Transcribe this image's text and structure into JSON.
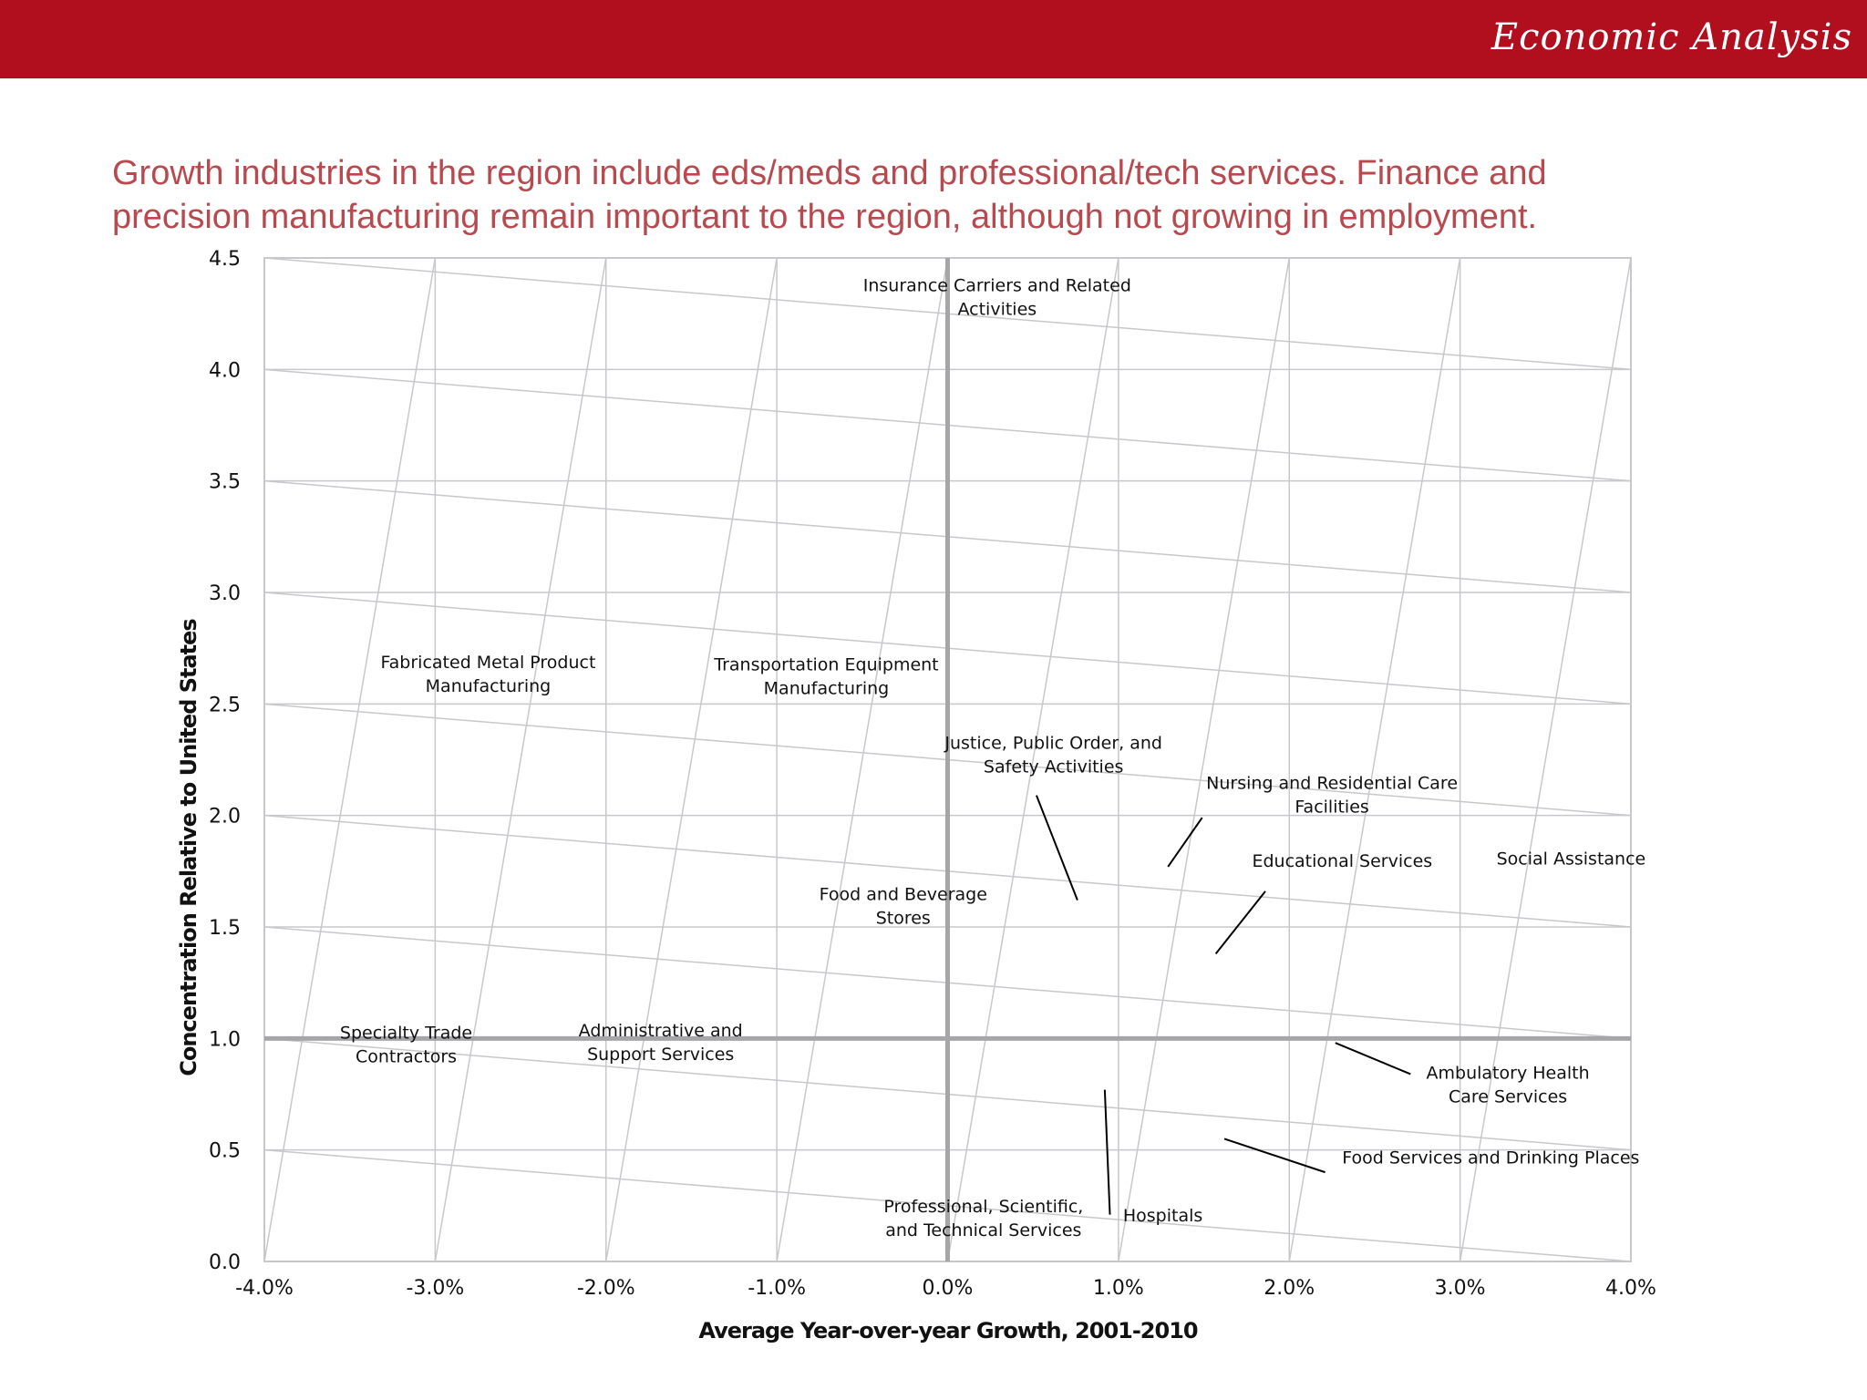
{
  "header": {
    "brand": "Economic Analysis",
    "headline_line1": "Growth industries in the region include eds/meds and professional/tech services. Finance and",
    "headline_line2": "precision manufacturing remain important to the region, although not growing in employment."
  },
  "colors": {
    "header_bg": "#b10e1e",
    "headline": "#b84a4f",
    "grid": "#c8c8cc",
    "axis_emphasis": "#a6a6a8"
  },
  "chart_data": {
    "type": "scatter",
    "xlabel": "Average Year-over-year Growth, 2001-2010",
    "ylabel": "Concentration Relative to United States",
    "xlim": [
      -0.04,
      0.04
    ],
    "ylim": [
      0,
      4.5
    ],
    "x_ticks": [
      "-4.0%",
      "-3.0%",
      "-2.0%",
      "-1.0%",
      "0.0%",
      "1.0%",
      "2.0%",
      "3.0%",
      "4.0%"
    ],
    "y_ticks": [
      "0.0",
      "0.5",
      "1.0",
      "1.5",
      "2.0",
      "2.5",
      "3.0",
      "3.5",
      "4.0",
      "4.5"
    ],
    "grid": true,
    "reference_lines": {
      "x": 0.0,
      "y": 1.0
    },
    "labels": [
      {
        "lines": [
          "Insurance Carriers and Related",
          "Activities"
        ],
        "x": 0.0029,
        "y": 4.35
      },
      {
        "lines": [
          "Fabricated Metal Product",
          "Manufacturing"
        ],
        "x": -0.0269,
        "y": 2.66
      },
      {
        "lines": [
          "Transportation Equipment",
          "Manufacturing"
        ],
        "x": -0.0071,
        "y": 2.65
      },
      {
        "lines": [
          "Justice, Public Order, and",
          "Safety Activities"
        ],
        "x": 0.0062,
        "y": 2.3
      },
      {
        "lines": [
          "Nursing and Residential Care",
          "Facilities"
        ],
        "x": 0.0225,
        "y": 2.12
      },
      {
        "lines": [
          "Educational Services"
        ],
        "x": 0.0231,
        "y": 1.77
      },
      {
        "lines": [
          "Social Assistance"
        ],
        "x": 0.0365,
        "y": 1.78
      },
      {
        "lines": [
          "Food and Beverage",
          "Stores"
        ],
        "x": -0.0026,
        "y": 1.62
      },
      {
        "lines": [
          "Specialty Trade",
          "Contractors"
        ],
        "x": -0.0317,
        "y": 1.0
      },
      {
        "lines": [
          "Administrative and",
          "Support Services"
        ],
        "x": -0.0168,
        "y": 1.01
      },
      {
        "lines": [
          "Ambulatory Health",
          "Care Services"
        ],
        "x": 0.0328,
        "y": 0.82
      },
      {
        "lines": [
          "Food Services and Drinking Places"
        ],
        "x": 0.0318,
        "y": 0.44
      },
      {
        "lines": [
          "Professional, Scientific,",
          "and Technical Services"
        ],
        "x": 0.0021,
        "y": 0.22
      },
      {
        "lines": [
          "Hospitals"
        ],
        "x": 0.0126,
        "y": 0.18
      }
    ],
    "leaders": [
      {
        "from": [
          0.0052,
          2.09
        ],
        "to": [
          0.0076,
          1.62
        ]
      },
      {
        "from": [
          0.0149,
          1.99
        ],
        "to": [
          0.0129,
          1.77
        ]
      },
      {
        "from": [
          0.0186,
          1.66
        ],
        "to": [
          0.0157,
          1.38
        ]
      },
      {
        "from": [
          0.0227,
          0.98
        ],
        "to": [
          0.0271,
          0.84
        ]
      },
      {
        "from": [
          0.0162,
          0.55
        ],
        "to": [
          0.0221,
          0.4
        ]
      },
      {
        "from": [
          0.0092,
          0.77
        ],
        "to": [
          0.0095,
          0.21
        ]
      }
    ]
  }
}
